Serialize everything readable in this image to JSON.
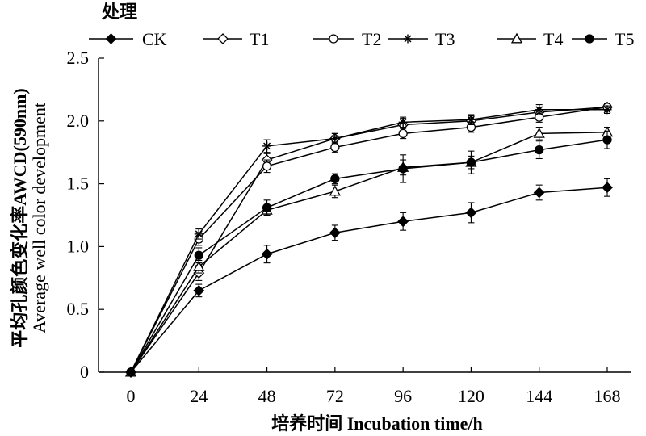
{
  "chart_data": {
    "type": "line",
    "legend_title": "处理",
    "legend_position": "top",
    "xlabel": "培养时间 Incubation time/h",
    "ylabel": [
      "平均孔颜色变化率AWCD(590nm)",
      "Average well color development"
    ],
    "x": [
      0,
      24,
      48,
      72,
      96,
      120,
      144,
      168
    ],
    "x_tick_labels": [
      "0",
      "24",
      "48",
      "72",
      "96",
      "120",
      "144",
      "168"
    ],
    "y_tick_labels": [
      "0",
      "0.5",
      "1.0",
      "1.5",
      "2.0",
      "2.5"
    ],
    "ylim": [
      0,
      2.5
    ],
    "y_ticks": [
      0,
      0.5,
      1.0,
      1.5,
      2.0,
      2.5
    ],
    "grid": false,
    "series": [
      {
        "name": "CK",
        "marker": "diamond-filled",
        "values": [
          0,
          0.65,
          0.94,
          1.11,
          1.2,
          1.27,
          1.43,
          1.47
        ],
        "errors": [
          0,
          0.05,
          0.07,
          0.06,
          0.07,
          0.08,
          0.06,
          0.07
        ]
      },
      {
        "name": "T1",
        "marker": "diamond-open",
        "values": [
          0,
          0.79,
          1.69,
          1.86,
          1.97,
          2.0,
          2.07,
          2.11
        ],
        "errors": [
          0,
          0.06,
          0.05,
          0.04,
          0.05,
          0.04,
          0.04,
          0.03
        ]
      },
      {
        "name": "T2",
        "marker": "circle-open",
        "values": [
          0,
          1.06,
          1.64,
          1.79,
          1.9,
          1.95,
          2.03,
          2.11
        ],
        "errors": [
          0,
          0.05,
          0.05,
          0.04,
          0.04,
          0.04,
          0.04,
          0.03
        ]
      },
      {
        "name": "T3",
        "marker": "star",
        "values": [
          0,
          1.1,
          1.8,
          1.86,
          1.99,
          2.01,
          2.09,
          2.09
        ],
        "errors": [
          0,
          0.04,
          0.05,
          0.04,
          0.04,
          0.04,
          0.04,
          0.03
        ]
      },
      {
        "name": "T4",
        "marker": "triangle-open",
        "values": [
          0,
          0.84,
          1.29,
          1.44,
          1.63,
          1.67,
          1.9,
          1.91
        ],
        "errors": [
          0,
          0.05,
          0.04,
          0.05,
          0.06,
          0.05,
          0.05,
          0.04
        ]
      },
      {
        "name": "T5",
        "marker": "circle-filled",
        "values": [
          0,
          0.93,
          1.31,
          1.54,
          1.62,
          1.67,
          1.77,
          1.85
        ],
        "errors": [
          0,
          0.06,
          0.06,
          0.04,
          0.11,
          0.09,
          0.07,
          0.07
        ]
      }
    ]
  }
}
